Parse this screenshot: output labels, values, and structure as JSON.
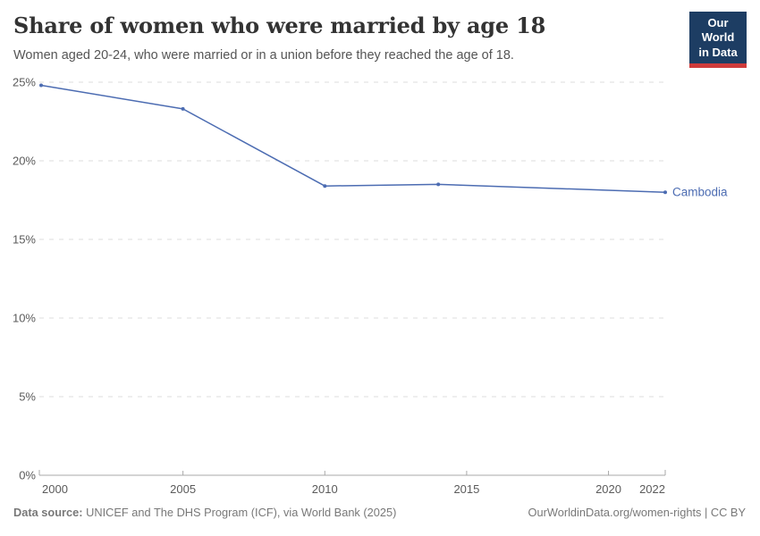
{
  "header": {
    "title": "Share of women who were married by age 18",
    "subtitle": "Women aged 20-24, who were married or in a union before they reached the age of 18.",
    "logo": {
      "line1": "Our World",
      "line2": "in Data",
      "bg_color": "#1d3d63",
      "accent_color": "#cf3b3b"
    }
  },
  "chart_data": {
    "type": "line",
    "title": "Share of women who were married by age 18",
    "series": [
      {
        "name": "Cambodia",
        "color": "#4c6cb2",
        "points": [
          [
            2000,
            24.8
          ],
          [
            2005,
            23.3
          ],
          [
            2010,
            18.4
          ],
          [
            2014,
            18.5
          ],
          [
            2022,
            18.0
          ]
        ]
      }
    ],
    "xlabel": "",
    "ylabel": "",
    "xlim": [
      2000,
      2022
    ],
    "ylim": [
      0,
      25
    ],
    "x_ticks": [
      2000,
      2005,
      2010,
      2015,
      2020,
      2022
    ],
    "y_ticks": [
      0,
      5,
      10,
      15,
      20,
      25
    ],
    "y_tick_suffix": "%",
    "grid": "horizontal-dashed",
    "legend_position": "end-of-line-label",
    "end_label": "Cambodia",
    "grid_color": "#dcdcdc",
    "axis_color": "#a8a8a8",
    "tick_label_color": "#5b5b5b"
  },
  "footer": {
    "datasource_label": "Data source:",
    "datasource_text": "UNICEF and The DHS Program (ICF), via World Bank (2025)",
    "link_text": "OurWorldinData.org/women-rights | CC BY"
  }
}
